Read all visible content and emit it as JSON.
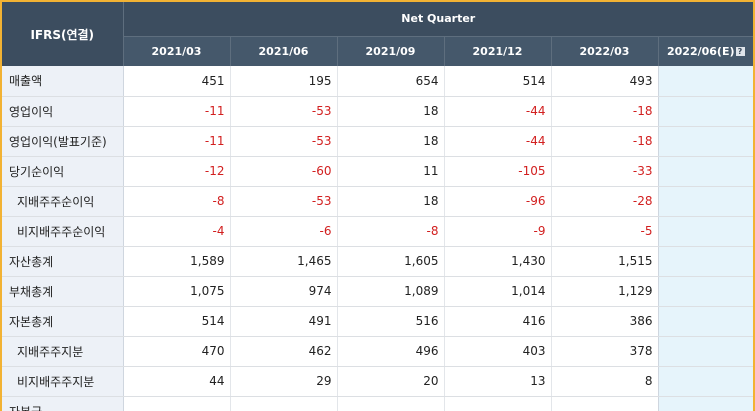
{
  "table": {
    "corner_label": "IFRS(연결)",
    "group_label": "Net Quarter",
    "periods": [
      "2021/03",
      "2021/06",
      "2021/09",
      "2021/12",
      "2022/03",
      "2022/06(E)"
    ],
    "help_icon_glyph": "?",
    "rows": [
      {
        "label": "매출액",
        "indent": false,
        "values": [
          "451",
          "195",
          "654",
          "514",
          "493",
          ""
        ]
      },
      {
        "label": "영업이익",
        "indent": false,
        "values": [
          "-11",
          "-53",
          "18",
          "-44",
          "-18",
          ""
        ]
      },
      {
        "label": "영업이익(발표기준)",
        "indent": false,
        "values": [
          "-11",
          "-53",
          "18",
          "-44",
          "-18",
          ""
        ]
      },
      {
        "label": "당기순이익",
        "indent": false,
        "values": [
          "-12",
          "-60",
          "11",
          "-105",
          "-33",
          ""
        ]
      },
      {
        "label": "지배주주순이익",
        "indent": true,
        "values": [
          "-8",
          "-53",
          "18",
          "-96",
          "-28",
          ""
        ]
      },
      {
        "label": "비지배주주순이익",
        "indent": true,
        "values": [
          "-4",
          "-6",
          "-8",
          "-9",
          "-5",
          ""
        ]
      },
      {
        "label": "자산총계",
        "indent": false,
        "values": [
          "1,589",
          "1,465",
          "1,605",
          "1,430",
          "1,515",
          ""
        ]
      },
      {
        "label": "부채총계",
        "indent": false,
        "values": [
          "1,075",
          "974",
          "1,089",
          "1,014",
          "1,129",
          ""
        ]
      },
      {
        "label": "자본총계",
        "indent": false,
        "values": [
          "514",
          "491",
          "516",
          "416",
          "386",
          ""
        ]
      },
      {
        "label": "지배주주지분",
        "indent": true,
        "values": [
          "470",
          "462",
          "496",
          "403",
          "378",
          ""
        ]
      },
      {
        "label": "비지배주주지분",
        "indent": true,
        "values": [
          "44",
          "29",
          "20",
          "13",
          "8",
          ""
        ]
      },
      {
        "label": "자본금",
        "indent": false,
        "values": [
          "",
          "",
          "",
          "",
          "",
          ""
        ]
      }
    ]
  },
  "colors": {
    "header_bg": "#3c4d5f",
    "label_bg": "#edf1f7",
    "estimate_bg": "#e6f4fb",
    "negative_text": "#d21f1f",
    "frame_border": "#f2b233"
  }
}
